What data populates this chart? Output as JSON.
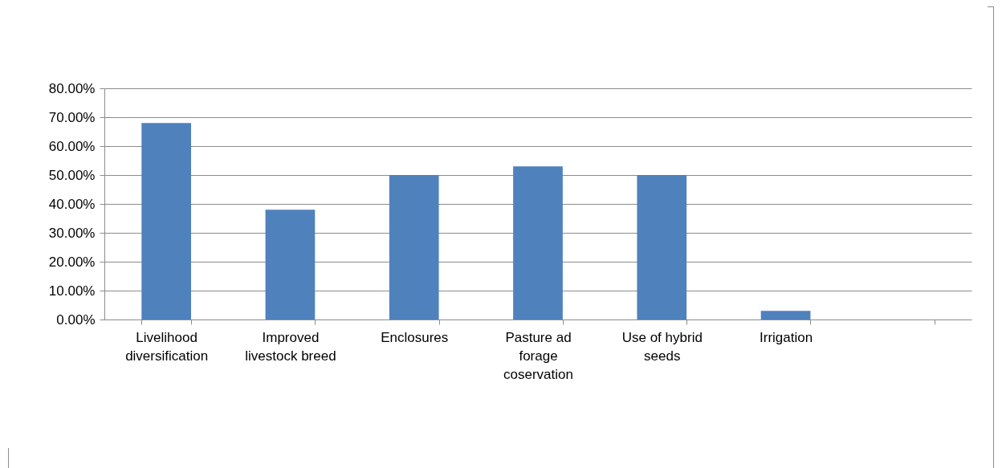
{
  "chart_data": {
    "type": "bar",
    "categories": [
      "Livelihood diversification",
      "Improved livestock breed",
      "Enclosures",
      "Pasture ad forage coservation",
      "Use of hybrid seeds",
      "Irrigation",
      null
    ],
    "values": [
      68,
      38,
      50,
      53,
      50,
      3,
      null
    ],
    "color": "#4f81bd",
    "ylim": [
      0,
      80
    ],
    "yticks": [
      {
        "value": 0,
        "label": "0.00%"
      },
      {
        "value": 10,
        "label": "10.00%"
      },
      {
        "value": 20,
        "label": "20.00%"
      },
      {
        "value": 30,
        "label": "30.00%"
      },
      {
        "value": 40,
        "label": "40.00%"
      },
      {
        "value": 50,
        "label": "50.00%"
      },
      {
        "value": 60,
        "label": "60.00%"
      },
      {
        "value": 70,
        "label": "70.00%"
      },
      {
        "value": 80,
        "label": "80.00%"
      }
    ],
    "grid": "y"
  }
}
